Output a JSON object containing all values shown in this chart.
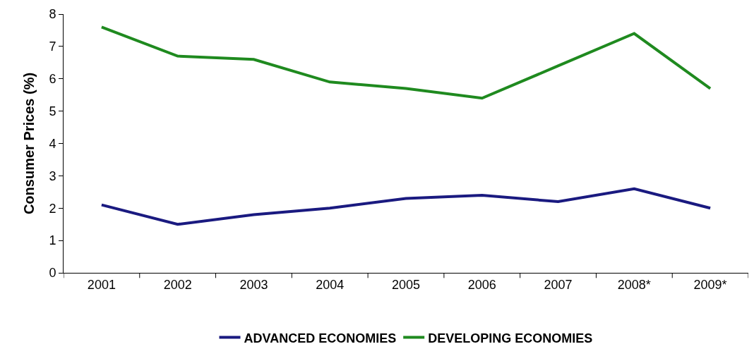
{
  "chart_data": {
    "type": "line",
    "ylabel": "Consumer Prices (%)",
    "categories": [
      "2001",
      "2002",
      "2003",
      "2004",
      "2005",
      "2006",
      "2007",
      "2008*",
      "2009*"
    ],
    "series": [
      {
        "name": "ADVANCED ECONOMIES",
        "color": "#1a1a80",
        "values": [
          2.1,
          1.5,
          1.8,
          2.0,
          2.3,
          2.4,
          2.2,
          2.6,
          2.0
        ]
      },
      {
        "name": "DEVELOPING ECONOMIES",
        "color": "#1f8a1f",
        "values": [
          7.6,
          6.7,
          6.6,
          5.9,
          5.7,
          5.4,
          6.4,
          7.4,
          5.7
        ]
      }
    ],
    "ylim": [
      0,
      8
    ],
    "yticks": [
      0,
      1,
      2,
      3,
      4,
      5,
      6,
      7,
      8
    ],
    "legend": "bottom",
    "marker": "none",
    "line_style": "solid"
  }
}
